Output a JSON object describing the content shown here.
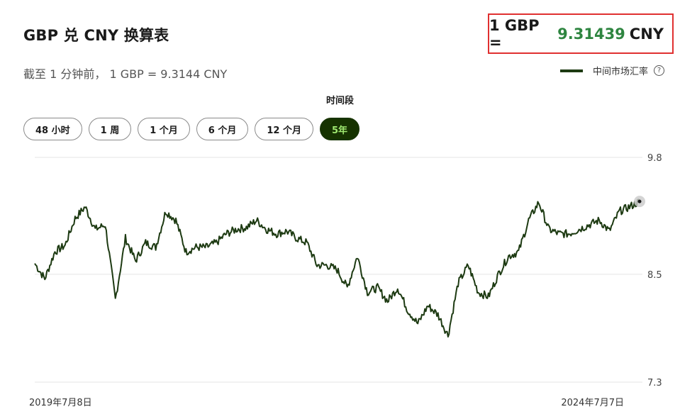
{
  "header": {
    "title": "GBP 兑 CNY 换算表",
    "rate_prefix": "1 GBP =",
    "rate_value": "9.31439",
    "rate_suffix": "CNY"
  },
  "subtitle": "截至 1 分钟前， 1 GBP = 9.3144 CNY",
  "legend": {
    "label": "中间市场汇率",
    "help_icon": "?"
  },
  "period": {
    "label": "时间段",
    "tabs": [
      {
        "label": "48 小时",
        "active": false
      },
      {
        "label": "1 周",
        "active": false
      },
      {
        "label": "1 个月",
        "active": false
      },
      {
        "label": "6 个月",
        "active": false
      },
      {
        "label": "12 个月",
        "active": false
      },
      {
        "label": "5年",
        "active": true
      }
    ]
  },
  "colors": {
    "line": "#1d3a12",
    "accent_green": "#2e8540",
    "active_tab_bg": "#163300",
    "active_tab_text": "#9fe870",
    "highlight_border": "#e03030"
  },
  "chart_data": {
    "type": "line",
    "series": [
      {
        "name": "中间市场汇率",
        "x": [
          "2019-07",
          "2019-08",
          "2019-09",
          "2019-10",
          "2019-11",
          "2019-12",
          "2020-01",
          "2020-02",
          "2020-03",
          "2020-04",
          "2020-05",
          "2020-06",
          "2020-07",
          "2020-08",
          "2020-09",
          "2020-10",
          "2020-11",
          "2020-12",
          "2021-01",
          "2021-02",
          "2021-03",
          "2021-04",
          "2021-05",
          "2021-06",
          "2021-07",
          "2021-08",
          "2021-09",
          "2021-10",
          "2021-11",
          "2021-12",
          "2022-01",
          "2022-02",
          "2022-03",
          "2022-04",
          "2022-05",
          "2022-06",
          "2022-07",
          "2022-08",
          "2022-09",
          "2022-10",
          "2022-11",
          "2022-12",
          "2023-01",
          "2023-02",
          "2023-03",
          "2023-04",
          "2023-05",
          "2023-06",
          "2023-07",
          "2023-08",
          "2023-09",
          "2023-10",
          "2023-11",
          "2023-12",
          "2024-01",
          "2024-02",
          "2024-03",
          "2024-04",
          "2024-05",
          "2024-06",
          "2024-07"
        ],
        "values": [
          8.62,
          8.45,
          8.75,
          8.82,
          9.12,
          9.25,
          9.0,
          9.05,
          8.22,
          8.9,
          8.65,
          8.85,
          8.8,
          9.2,
          9.1,
          8.75,
          8.8,
          8.8,
          8.85,
          8.95,
          9.0,
          9.02,
          9.1,
          9.0,
          8.95,
          8.98,
          8.9,
          8.85,
          8.6,
          8.6,
          8.55,
          8.35,
          8.7,
          8.3,
          8.35,
          8.2,
          8.35,
          8.1,
          7.95,
          8.15,
          8.05,
          7.82,
          8.4,
          8.6,
          8.3,
          8.25,
          8.5,
          8.7,
          8.75,
          9.1,
          9.3,
          9.0,
          8.95,
          8.95,
          9.0,
          9.05,
          9.1,
          8.98,
          9.2,
          9.25,
          9.31
        ]
      }
    ],
    "ylim": [
      7.3,
      9.8
    ],
    "yticks": [
      "9.8",
      "8.5",
      "7.3"
    ],
    "xtick_labels": [
      "2019年7月8日",
      "2024年7月7日"
    ],
    "grid": true
  }
}
